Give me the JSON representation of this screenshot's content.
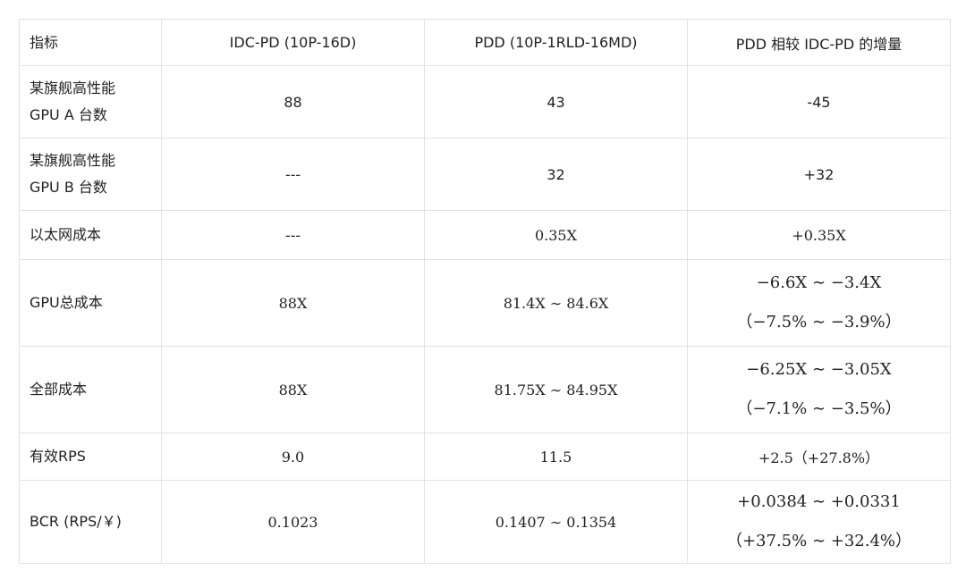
{
  "table": {
    "headers": [
      "指标",
      "IDC-PD (10P-16D)",
      "PDD (10P-1RLD-16MD)",
      "PDD 相较 IDC-PD 的增量"
    ],
    "rows": [
      {
        "metric_line1": "某旗舰高性能",
        "metric_line2": "GPU A 台数",
        "idc": "88",
        "pdd": "43",
        "delta": "-45"
      },
      {
        "metric_line1": "某旗舰高性能",
        "metric_line2": "GPU B 台数",
        "idc": "---",
        "pdd": "32",
        "delta": "+32"
      },
      {
        "metric": "以太网成本",
        "idc": "---",
        "pdd": "0.35X",
        "delta": "+0.35X"
      },
      {
        "metric": "GPU总成本",
        "idc": "88X",
        "pdd": "81.4X ∼ 84.6X",
        "delta_line1": "−6.6X ∼ −3.4X",
        "delta_line2": "（−7.5% ∼ −3.9%）"
      },
      {
        "metric": "全部成本",
        "idc": "88X",
        "pdd": "81.75X ∼ 84.95X",
        "delta_line1": "−6.25X ∼ −3.05X",
        "delta_line2": "（−7.1% ∼ −3.5%）"
      },
      {
        "metric": "有效RPS",
        "idc": "9.0",
        "pdd": "11.5",
        "delta": "+2.5（+27.8%）"
      },
      {
        "metric": "BCR (RPS/￥)",
        "idc": "0.1023",
        "pdd": "0.1407 ∼ 0.1354",
        "delta_line1": "+0.0384 ∼ +0.0331",
        "delta_line2": "（+37.5% ∼ +32.4%）"
      }
    ]
  }
}
